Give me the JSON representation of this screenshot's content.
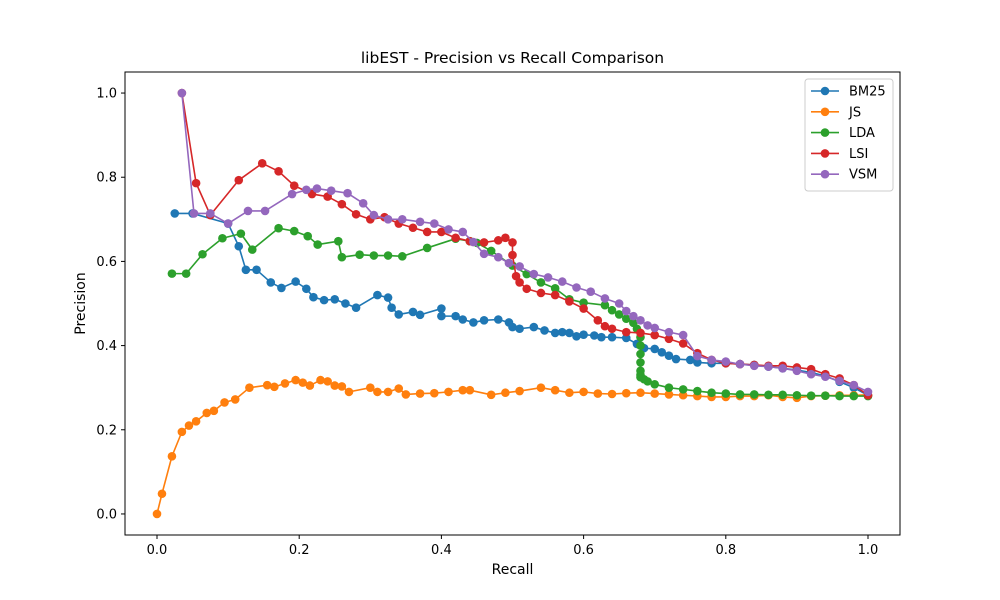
{
  "chart_data": {
    "type": "line",
    "title": "libEST - Precision vs Recall Comparison",
    "xlabel": "Recall",
    "ylabel": "Precision",
    "xlim": [
      -0.045,
      1.045
    ],
    "ylim": [
      -0.05,
      1.05
    ],
    "xticks": [
      0.0,
      0.2,
      0.4,
      0.6,
      0.8,
      1.0
    ],
    "xtick_labels": [
      "0.0",
      "0.2",
      "0.4",
      "0.6",
      "0.8",
      "1.0"
    ],
    "yticks": [
      0.0,
      0.2,
      0.4,
      0.6,
      0.8,
      1.0
    ],
    "ytick_labels": [
      "0.0",
      "0.2",
      "0.4",
      "0.6",
      "0.8",
      "1.0"
    ],
    "grid": false,
    "legend_position": "top-right",
    "series": [
      {
        "name": "BM25",
        "color": "#1f77b4",
        "x": [
          0.025,
          0.05,
          0.1,
          0.115,
          0.125,
          0.14,
          0.16,
          0.175,
          0.195,
          0.21,
          0.22,
          0.235,
          0.25,
          0.265,
          0.28,
          0.31,
          0.325,
          0.33,
          0.34,
          0.36,
          0.37,
          0.4,
          0.4,
          0.42,
          0.43,
          0.445,
          0.46,
          0.48,
          0.495,
          0.5,
          0.51,
          0.53,
          0.545,
          0.56,
          0.57,
          0.58,
          0.59,
          0.6,
          0.615,
          0.625,
          0.64,
          0.66,
          0.675,
          0.685,
          0.7,
          0.71,
          0.72,
          0.73,
          0.75,
          0.76,
          0.78,
          0.8,
          0.82,
          0.84,
          0.86,
          0.88,
          0.9,
          0.92,
          0.94,
          0.96,
          0.98,
          1.0
        ],
        "y": [
          0.714,
          0.714,
          0.69,
          0.636,
          0.58,
          0.58,
          0.55,
          0.537,
          0.552,
          0.535,
          0.515,
          0.508,
          0.51,
          0.5,
          0.49,
          0.52,
          0.514,
          0.49,
          0.474,
          0.48,
          0.473,
          0.488,
          0.47,
          0.47,
          0.462,
          0.455,
          0.46,
          0.462,
          0.455,
          0.444,
          0.44,
          0.444,
          0.436,
          0.43,
          0.432,
          0.43,
          0.422,
          0.426,
          0.424,
          0.42,
          0.42,
          0.418,
          0.404,
          0.394,
          0.392,
          0.384,
          0.376,
          0.368,
          0.366,
          0.36,
          0.358,
          0.358,
          0.356,
          0.354,
          0.35,
          0.346,
          0.342,
          0.336,
          0.328,
          0.314,
          0.3,
          0.282
        ]
      },
      {
        "name": "JS",
        "color": "#ff7f0e",
        "x": [
          0.0,
          0.007,
          0.021,
          0.035,
          0.045,
          0.055,
          0.07,
          0.08,
          0.095,
          0.11,
          0.13,
          0.155,
          0.165,
          0.18,
          0.195,
          0.205,
          0.215,
          0.23,
          0.24,
          0.25,
          0.26,
          0.27,
          0.3,
          0.31,
          0.325,
          0.34,
          0.35,
          0.37,
          0.39,
          0.41,
          0.43,
          0.44,
          0.47,
          0.49,
          0.51,
          0.54,
          0.56,
          0.58,
          0.6,
          0.62,
          0.64,
          0.66,
          0.68,
          0.7,
          0.72,
          0.74,
          0.76,
          0.78,
          0.8,
          0.82,
          0.84,
          0.86,
          0.88,
          0.9,
          0.92,
          0.94,
          0.96,
          0.98,
          1.0
        ],
        "y": [
          0.0,
          0.048,
          0.137,
          0.195,
          0.21,
          0.22,
          0.24,
          0.245,
          0.265,
          0.272,
          0.3,
          0.306,
          0.302,
          0.31,
          0.318,
          0.312,
          0.305,
          0.318,
          0.315,
          0.305,
          0.303,
          0.29,
          0.3,
          0.29,
          0.29,
          0.298,
          0.284,
          0.286,
          0.287,
          0.29,
          0.294,
          0.294,
          0.283,
          0.288,
          0.292,
          0.3,
          0.294,
          0.288,
          0.29,
          0.286,
          0.285,
          0.287,
          0.288,
          0.286,
          0.284,
          0.282,
          0.28,
          0.278,
          0.278,
          0.28,
          0.28,
          0.282,
          0.278,
          0.276,
          0.28,
          0.281,
          0.282,
          0.282,
          0.283
        ]
      },
      {
        "name": "LDA",
        "color": "#2ca02c",
        "x": [
          0.021,
          0.041,
          0.064,
          0.092,
          0.118,
          0.134,
          0.171,
          0.193,
          0.212,
          0.226,
          0.255,
          0.26,
          0.285,
          0.305,
          0.325,
          0.345,
          0.38,
          0.42,
          0.44,
          0.45,
          0.47,
          0.5,
          0.52,
          0.54,
          0.56,
          0.58,
          0.6,
          0.63,
          0.64,
          0.65,
          0.66,
          0.67,
          0.675,
          0.68,
          0.68,
          0.68,
          0.68,
          0.68,
          0.68,
          0.68,
          0.685,
          0.69,
          0.7,
          0.72,
          0.74,
          0.76,
          0.78,
          0.8,
          0.82,
          0.84,
          0.86,
          0.88,
          0.9,
          0.92,
          0.94,
          0.96,
          0.98,
          1.0
        ],
        "y": [
          0.571,
          0.571,
          0.617,
          0.655,
          0.666,
          0.628,
          0.679,
          0.672,
          0.66,
          0.64,
          0.648,
          0.61,
          0.616,
          0.614,
          0.614,
          0.612,
          0.632,
          0.654,
          0.648,
          0.644,
          0.625,
          0.59,
          0.57,
          0.55,
          0.536,
          0.51,
          0.502,
          0.496,
          0.484,
          0.474,
          0.464,
          0.454,
          0.44,
          0.42,
          0.4,
          0.38,
          0.36,
          0.34,
          0.33,
          0.325,
          0.32,
          0.315,
          0.308,
          0.3,
          0.296,
          0.292,
          0.288,
          0.286,
          0.284,
          0.284,
          0.283,
          0.283,
          0.282,
          0.281,
          0.281,
          0.28,
          0.28,
          0.28
        ]
      },
      {
        "name": "LSI",
        "color": "#d62728",
        "x": [
          0.035,
          0.055,
          0.075,
          0.115,
          0.148,
          0.171,
          0.193,
          0.218,
          0.24,
          0.26,
          0.28,
          0.3,
          0.32,
          0.34,
          0.36,
          0.38,
          0.4,
          0.42,
          0.44,
          0.46,
          0.48,
          0.49,
          0.5,
          0.5,
          0.505,
          0.51,
          0.52,
          0.54,
          0.56,
          0.58,
          0.6,
          0.62,
          0.63,
          0.64,
          0.66,
          0.68,
          0.7,
          0.72,
          0.74,
          0.76,
          0.78,
          0.8,
          0.82,
          0.84,
          0.86,
          0.88,
          0.9,
          0.92,
          0.94,
          0.96,
          0.98,
          1.0
        ],
        "y": [
          1.0,
          0.786,
          0.71,
          0.793,
          0.833,
          0.814,
          0.78,
          0.76,
          0.754,
          0.736,
          0.712,
          0.7,
          0.705,
          0.69,
          0.68,
          0.67,
          0.67,
          0.656,
          0.648,
          0.645,
          0.65,
          0.656,
          0.645,
          0.615,
          0.565,
          0.55,
          0.535,
          0.525,
          0.52,
          0.505,
          0.488,
          0.46,
          0.446,
          0.44,
          0.432,
          0.43,
          0.425,
          0.416,
          0.405,
          0.382,
          0.366,
          0.358,
          0.356,
          0.354,
          0.352,
          0.352,
          0.348,
          0.344,
          0.332,
          0.322,
          0.306,
          0.282
        ]
      },
      {
        "name": "VSM",
        "color": "#9467bd",
        "x": [
          0.035,
          0.052,
          0.075,
          0.1,
          0.128,
          0.152,
          0.19,
          0.21,
          0.225,
          0.245,
          0.268,
          0.29,
          0.305,
          0.325,
          0.345,
          0.37,
          0.39,
          0.41,
          0.43,
          0.445,
          0.46,
          0.48,
          0.495,
          0.51,
          0.53,
          0.55,
          0.57,
          0.59,
          0.61,
          0.63,
          0.65,
          0.66,
          0.67,
          0.68,
          0.69,
          0.7,
          0.72,
          0.74,
          0.76,
          0.78,
          0.8,
          0.82,
          0.84,
          0.86,
          0.88,
          0.9,
          0.92,
          0.94,
          0.96,
          0.98,
          1.0
        ],
        "y": [
          1.0,
          0.714,
          0.714,
          0.69,
          0.72,
          0.72,
          0.76,
          0.77,
          0.773,
          0.768,
          0.762,
          0.738,
          0.71,
          0.7,
          0.7,
          0.694,
          0.69,
          0.676,
          0.67,
          0.646,
          0.618,
          0.61,
          0.596,
          0.588,
          0.57,
          0.562,
          0.552,
          0.538,
          0.528,
          0.512,
          0.5,
          0.482,
          0.47,
          0.46,
          0.448,
          0.442,
          0.432,
          0.425,
          0.375,
          0.366,
          0.362,
          0.356,
          0.352,
          0.35,
          0.346,
          0.34,
          0.332,
          0.326,
          0.316,
          0.306,
          0.29
        ]
      }
    ]
  }
}
